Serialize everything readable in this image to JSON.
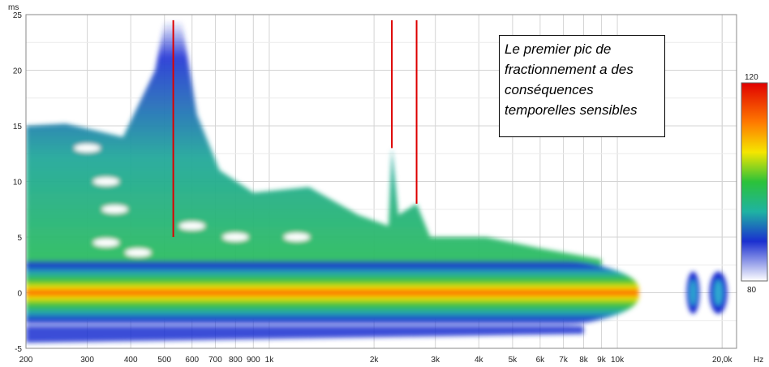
{
  "annotation": {
    "text": "Le premier pic de fractionnement a des conséquences temporelles sensibles"
  },
  "chart_data": {
    "type": "heatmap",
    "title": "",
    "xlabel": "Hz",
    "ylabel": "ms",
    "x_scale": "log",
    "xlim": [
      200,
      22000
    ],
    "ylim": [
      -5,
      25
    ],
    "x_ticks": [
      {
        "value": 200,
        "label": "200"
      },
      {
        "value": 300,
        "label": "300"
      },
      {
        "value": 400,
        "label": "400"
      },
      {
        "value": 500,
        "label": "500"
      },
      {
        "value": 600,
        "label": "600"
      },
      {
        "value": 700,
        "label": "700"
      },
      {
        "value": 800,
        "label": "800"
      },
      {
        "value": 900,
        "label": "900"
      },
      {
        "value": 1000,
        "label": "1k"
      },
      {
        "value": 2000,
        "label": "2k"
      },
      {
        "value": 3000,
        "label": "3k"
      },
      {
        "value": 4000,
        "label": "4k"
      },
      {
        "value": 5000,
        "label": "5k"
      },
      {
        "value": 6000,
        "label": "6k"
      },
      {
        "value": 7000,
        "label": "7k"
      },
      {
        "value": 8000,
        "label": "8k"
      },
      {
        "value": 9000,
        "label": "9k"
      },
      {
        "value": 10000,
        "label": "10k"
      },
      {
        "value": 20000,
        "label": "20,0k"
      }
    ],
    "y_ticks": [
      -5,
      0,
      5,
      10,
      15,
      20,
      25
    ],
    "grid": true,
    "colorbar": {
      "min": 80,
      "max": 120,
      "max_label": "120",
      "min_label": "80"
    },
    "ridge": {
      "center_ms": 0,
      "note": "main energy band around 0 ms across 200 Hz – 10 kHz"
    },
    "markers": [
      {
        "freq_hz": 530,
        "from_ms": 5,
        "to_ms": 24.5
      },
      {
        "freq_hz": 2250,
        "from_ms": 13,
        "to_ms": 24.5
      },
      {
        "freq_hz": 2650,
        "from_ms": 8,
        "to_ms": 24.5
      }
    ],
    "colors": {
      "marker": "#dd0000",
      "grid": "#d4d4d4"
    }
  }
}
